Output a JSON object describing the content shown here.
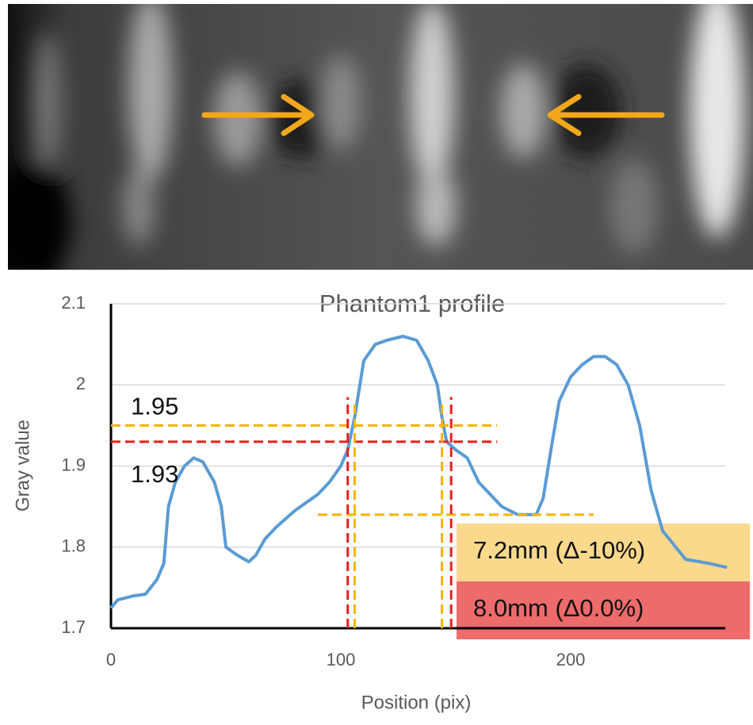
{
  "chart_data": {
    "type": "line",
    "title": "Phantom1 profile",
    "xlabel": "Position (pix)",
    "ylabel": "Gray value",
    "x": [
      0,
      3,
      10,
      15,
      20,
      23,
      25,
      28,
      32,
      36,
      40,
      45,
      48,
      50,
      55,
      60,
      63,
      67,
      72,
      80,
      90,
      95,
      100,
      103,
      106,
      110,
      115,
      120,
      127,
      133,
      138,
      142,
      144,
      146,
      150,
      155,
      160,
      170,
      177,
      185,
      188,
      192,
      195,
      200,
      205,
      210,
      215,
      220,
      225,
      230,
      235,
      240,
      250,
      260,
      268
    ],
    "series": [
      {
        "color": "#5b9bd5",
        "values": [
          1.725,
          1.735,
          1.74,
          1.742,
          1.76,
          1.78,
          1.85,
          1.88,
          1.9,
          1.91,
          1.905,
          1.88,
          1.85,
          1.8,
          1.79,
          1.782,
          1.79,
          1.81,
          1.825,
          1.845,
          1.865,
          1.88,
          1.9,
          1.92,
          1.96,
          2.03,
          2.05,
          2.055,
          2.06,
          2.055,
          2.03,
          2.0,
          1.96,
          1.93,
          1.92,
          1.91,
          1.88,
          1.85,
          1.84,
          1.84,
          1.86,
          1.93,
          1.98,
          2.01,
          2.025,
          2.035,
          2.035,
          2.025,
          2.0,
          1.95,
          1.87,
          1.82,
          1.785,
          1.78,
          1.775
        ]
      }
    ],
    "xlim": [
      0,
      270
    ],
    "ylim": [
      1.7,
      2.1
    ],
    "xticks": [
      0,
      100,
      200
    ],
    "yticks": [
      1.7,
      1.8,
      1.9,
      2,
      2.1
    ],
    "grid": true,
    "reference_lines": [
      {
        "axis": "y",
        "value": 1.95,
        "from": 0,
        "to": 168,
        "color": "#f5b400"
      },
      {
        "axis": "y",
        "value": 1.93,
        "from": 0,
        "to": 168,
        "color": "#e8201c"
      },
      {
        "axis": "y",
        "value": 1.84,
        "from": 90,
        "to": 210,
        "color": "#f5b400"
      },
      {
        "axis": "x",
        "value": 103,
        "from": 1.7,
        "to": 1.985,
        "color": "#e8201c"
      },
      {
        "axis": "x",
        "value": 148,
        "from": 1.7,
        "to": 1.985,
        "color": "#e8201c"
      },
      {
        "axis": "x",
        "value": 106,
        "from": 1.7,
        "to": 1.98,
        "color": "#f5b400"
      },
      {
        "axis": "x",
        "value": 144,
        "from": 1.7,
        "to": 1.98,
        "color": "#f5b400"
      }
    ],
    "callouts": [
      {
        "text": "7.2mm (Δ-10%)",
        "color": "#fbd98c"
      },
      {
        "text": "8.0mm (Δ0.0%)",
        "color": "#ee6b6b"
      }
    ]
  }
}
